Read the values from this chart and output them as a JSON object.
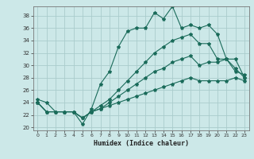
{
  "title": "",
  "xlabel": "Humidex (Indice chaleur)",
  "ylabel": "",
  "bg_color": "#cce8e8",
  "grid_color": "#aacccc",
  "line_color": "#1a6b5a",
  "xlim": [
    -0.5,
    23.5
  ],
  "ylim": [
    19.5,
    39.5
  ],
  "xticks": [
    0,
    1,
    2,
    3,
    4,
    5,
    6,
    7,
    8,
    9,
    10,
    11,
    12,
    13,
    14,
    15,
    16,
    17,
    18,
    19,
    20,
    21,
    22,
    23
  ],
  "yticks": [
    20,
    22,
    24,
    26,
    28,
    30,
    32,
    34,
    36,
    38
  ],
  "line1": [
    24.5,
    24.0,
    22.5,
    22.5,
    22.5,
    20.5,
    23.0,
    27.0,
    29.0,
    33.0,
    35.5,
    36.0,
    36.0,
    38.5,
    37.5,
    39.5,
    36.0,
    36.5,
    36.0,
    36.5,
    35.0,
    31.0,
    29.5,
    28.0
  ],
  "line2": [
    24.0,
    22.5,
    22.5,
    22.5,
    22.5,
    21.5,
    22.5,
    23.5,
    24.5,
    26.0,
    27.5,
    29.0,
    30.5,
    32.0,
    33.0,
    34.0,
    34.5,
    35.0,
    33.5,
    33.5,
    31.0,
    31.0,
    31.0,
    28.0
  ],
  "line3": [
    24.0,
    22.5,
    22.5,
    22.5,
    22.5,
    21.5,
    22.5,
    23.0,
    24.0,
    25.0,
    26.0,
    27.0,
    28.0,
    29.0,
    29.5,
    30.5,
    31.0,
    31.5,
    30.0,
    30.5,
    30.5,
    31.0,
    29.0,
    28.5
  ],
  "line4": [
    24.0,
    22.5,
    22.5,
    22.5,
    22.5,
    21.5,
    22.5,
    23.0,
    23.5,
    24.0,
    24.5,
    25.0,
    25.5,
    26.0,
    26.5,
    27.0,
    27.5,
    28.0,
    27.5,
    27.5,
    27.5,
    27.5,
    28.0,
    27.5
  ]
}
